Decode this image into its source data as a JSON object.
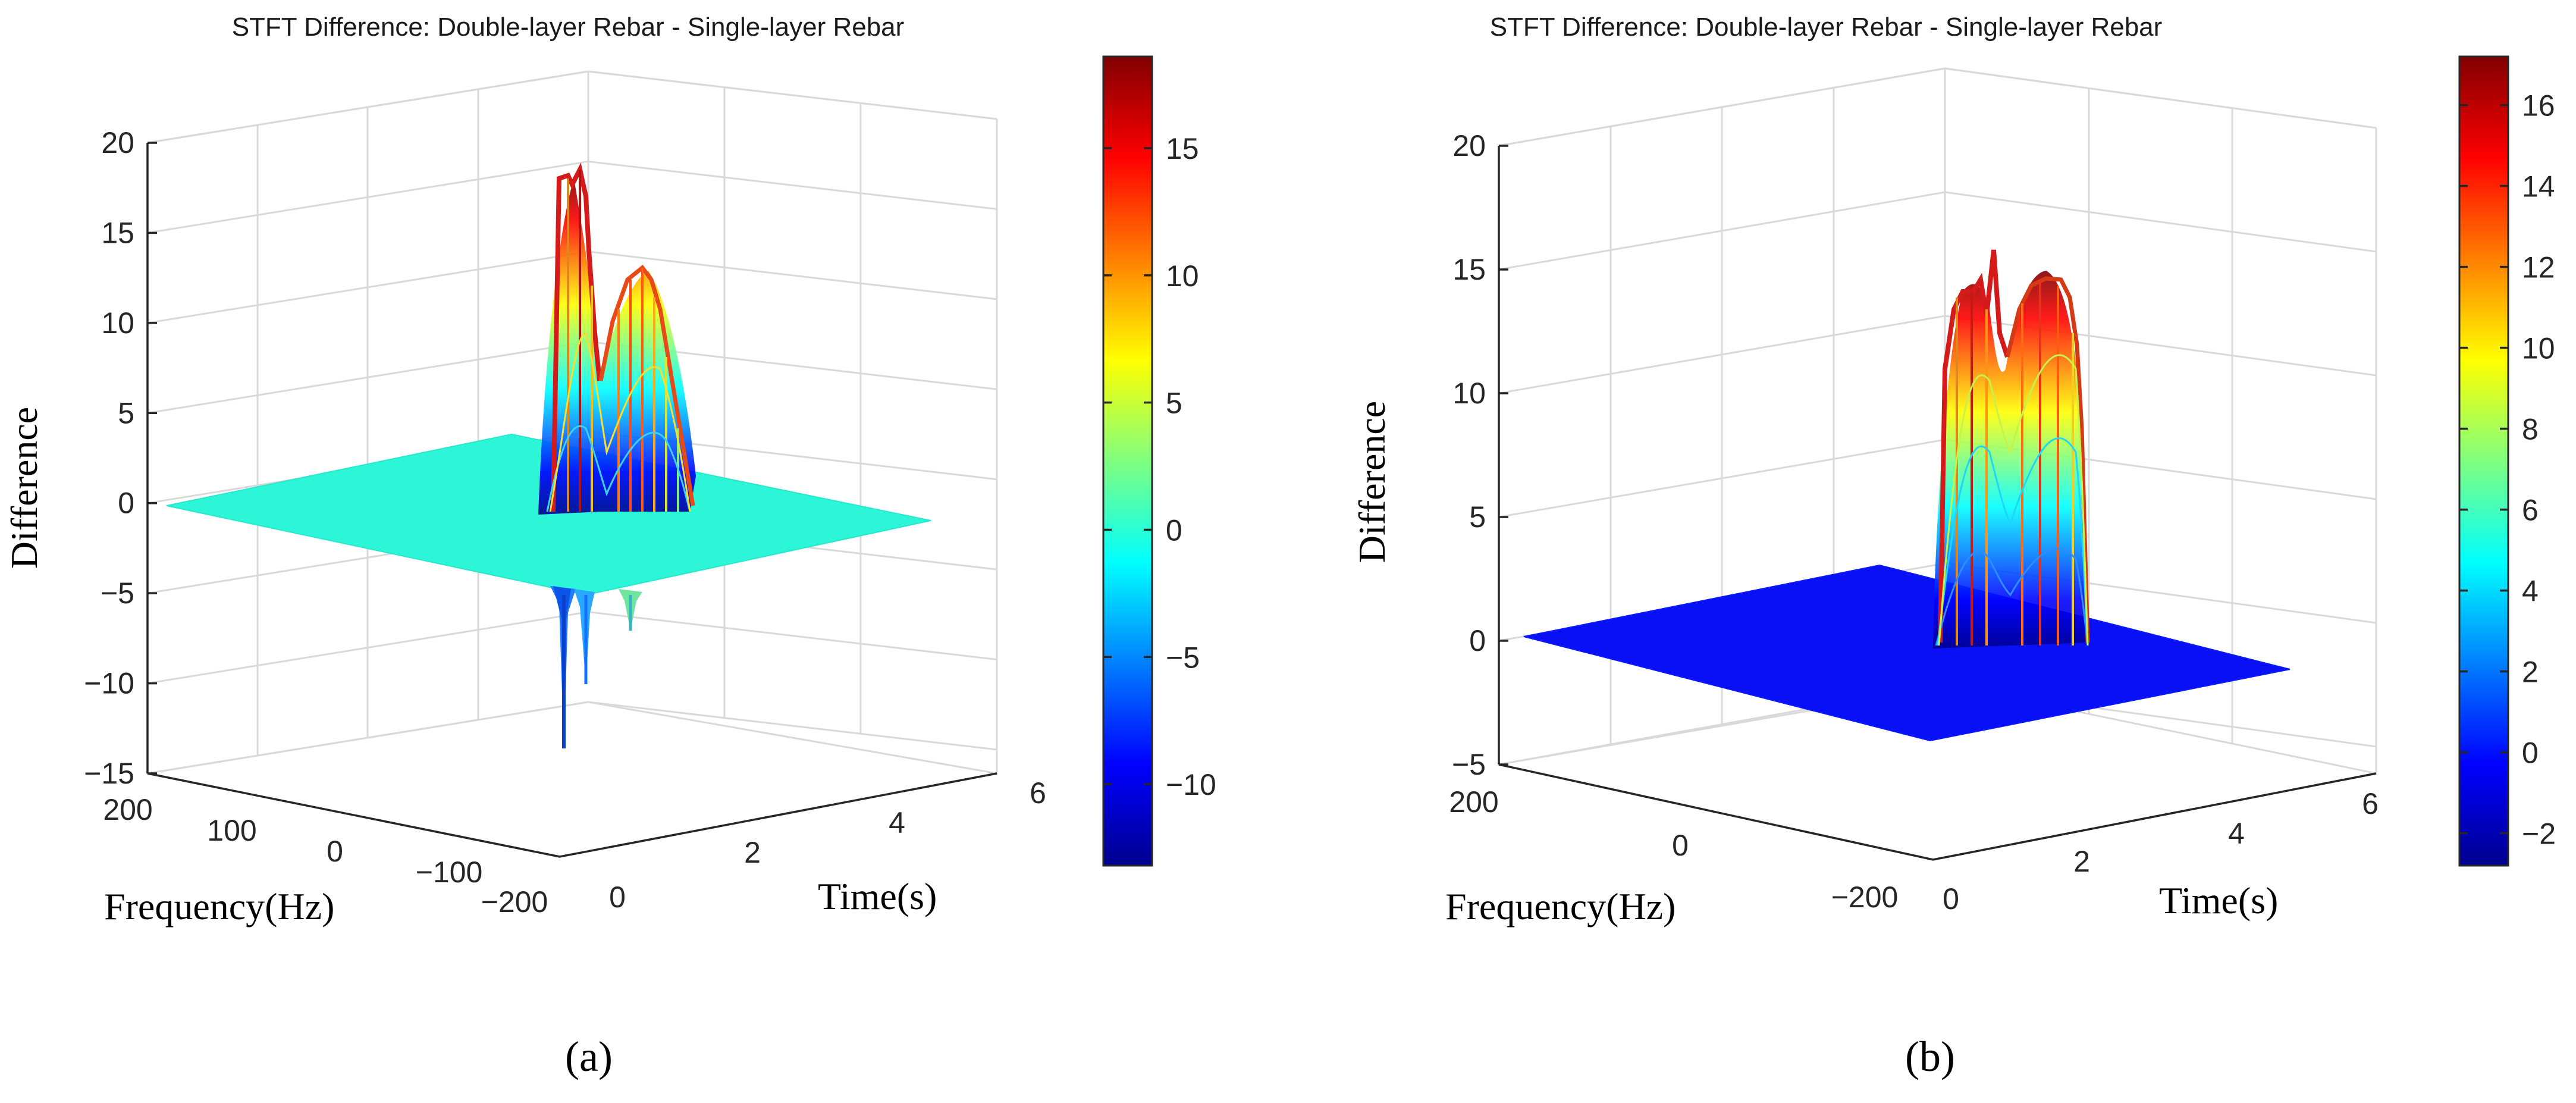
{
  "chart_data": [
    {
      "type": "surface",
      "panel": "(a)",
      "title": "STFT Difference: Double-layer Rebar - Single-layer Rebar",
      "xlabel": "Time(s)",
      "ylabel": "Frequency(Hz)",
      "zlabel": "Difference",
      "xlim": [
        0,
        6
      ],
      "ylim": [
        -200,
        200
      ],
      "zlim": [
        -15,
        20
      ],
      "x_ticks": [
        "0",
        "2",
        "4",
        "6"
      ],
      "y_ticks": [
        "200",
        "100",
        "0",
        "−100",
        "−200"
      ],
      "z_ticks": [
        "−15",
        "−10",
        "−5",
        "0",
        "5",
        "10",
        "15",
        "20"
      ],
      "colorbar": {
        "min": -13.2,
        "max": 18.6,
        "ticks": [
          "−10",
          "−5",
          "0",
          "5",
          "10",
          "15"
        ],
        "colormap": "jet"
      },
      "peaks": [
        {
          "time": 1.35,
          "frequency": 0,
          "value": 18.5
        },
        {
          "time": 2.5,
          "frequency": 0,
          "value": 14
        },
        {
          "time": 1.35,
          "frequency": 0,
          "value": -13.2
        },
        {
          "time": 2.5,
          "frequency": 0,
          "value": -6.5
        }
      ]
    },
    {
      "type": "surface",
      "panel": "(b)",
      "title": "STFT Difference: Double-layer Rebar - Single-layer Rebar",
      "xlabel": "Time(s)",
      "ylabel": "Frequency(Hz)",
      "zlabel": "Difference",
      "xlim": [
        0,
        6
      ],
      "ylim": [
        -200,
        200
      ],
      "zlim": [
        -5,
        20
      ],
      "x_ticks": [
        "0",
        "2",
        "4",
        "6"
      ],
      "y_ticks": [
        "200",
        "0",
        "−200"
      ],
      "z_ticks": [
        "−5",
        "0",
        "5",
        "10",
        "15",
        "20"
      ],
      "colorbar": {
        "min": -2.8,
        "max": 17.2,
        "ticks": [
          "−2",
          "0",
          "2",
          "4",
          "6",
          "8",
          "10",
          "12",
          "14",
          "16"
        ],
        "colormap": "jet"
      },
      "peaks": [
        {
          "time": 1.35,
          "frequency": 0,
          "value": 17.2
        },
        {
          "time": 2.5,
          "frequency": 0,
          "value": 14.8
        }
      ]
    }
  ]
}
